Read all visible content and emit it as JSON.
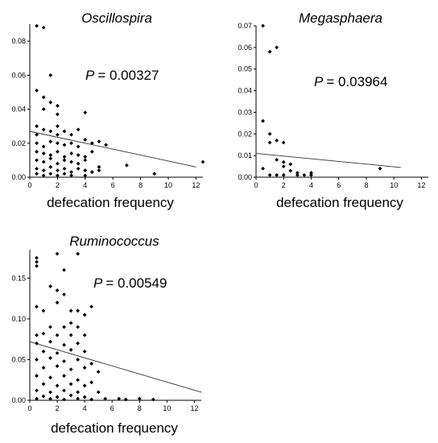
{
  "chart_data": [
    {
      "type": "scatter",
      "title": "Oscillospira",
      "xlabel": "defecation frequency",
      "ylabel": "",
      "annotation": {
        "label": "P",
        "value": "= 0.00327"
      },
      "xlim": [
        0,
        12.5
      ],
      "ylim": [
        0,
        0.09
      ],
      "xticks": [
        "0",
        "2",
        "4",
        "6",
        "8",
        "10",
        "12"
      ],
      "xtick_values": [
        0,
        2,
        4,
        6,
        8,
        10,
        12
      ],
      "yticks": [
        "0.00",
        "0.02",
        "0.04",
        "0.06",
        "0.08"
      ],
      "ytick_values": [
        0,
        0.02,
        0.04,
        0.06,
        0.08
      ],
      "trendline": {
        "x": [
          0,
          12
        ],
        "y": [
          0.027,
          0.006
        ]
      },
      "points": [
        [
          0.5,
          0.089
        ],
        [
          1.0,
          0.088
        ],
        [
          0.5,
          0.051
        ],
        [
          1.0,
          0.047
        ],
        [
          1.5,
          0.06
        ],
        [
          1.5,
          0.044
        ],
        [
          2.0,
          0.042
        ],
        [
          1.0,
          0.04
        ],
        [
          2.0,
          0.037
        ],
        [
          4.0,
          0.038
        ],
        [
          0.5,
          0.03
        ],
        [
          1.0,
          0.028
        ],
        [
          0.5,
          0.025
        ],
        [
          1.5,
          0.027
        ],
        [
          2.0,
          0.03
        ],
        [
          2.0,
          0.025
        ],
        [
          2.5,
          0.027
        ],
        [
          3.0,
          0.025
        ],
        [
          3.5,
          0.028
        ],
        [
          0.5,
          0.02
        ],
        [
          1.0,
          0.018
        ],
        [
          1.5,
          0.021
        ],
        [
          2.0,
          0.02
        ],
        [
          2.5,
          0.019
        ],
        [
          3.0,
          0.02
        ],
        [
          3.5,
          0.018
        ],
        [
          4.0,
          0.022
        ],
        [
          4.5,
          0.02
        ],
        [
          5.0,
          0.021
        ],
        [
          5.5,
          0.019
        ],
        [
          0.5,
          0.015
        ],
        [
          1.0,
          0.014
        ],
        [
          1.5,
          0.013
        ],
        [
          2.0,
          0.015
        ],
        [
          2.5,
          0.012
        ],
        [
          3.0,
          0.014
        ],
        [
          3.5,
          0.013
        ],
        [
          4.0,
          0.012
        ],
        [
          4.5,
          0.015
        ],
        [
          0.5,
          0.01
        ],
        [
          1.0,
          0.009
        ],
        [
          1.5,
          0.011
        ],
        [
          2.0,
          0.008
        ],
        [
          2.5,
          0.01
        ],
        [
          3.0,
          0.009
        ],
        [
          3.5,
          0.008
        ],
        [
          4.0,
          0.01
        ],
        [
          5.0,
          0.006
        ],
        [
          7.0,
          0.007
        ],
        [
          0.5,
          0.005
        ],
        [
          1.0,
          0.004
        ],
        [
          1.5,
          0.006
        ],
        [
          2.0,
          0.004
        ],
        [
          2.5,
          0.005
        ],
        [
          3.0,
          0.003
        ],
        [
          3.5,
          0.005
        ],
        [
          4.0,
          0.004
        ],
        [
          4.5,
          0.003
        ],
        [
          5.0,
          0.004
        ],
        [
          0.5,
          0.002
        ],
        [
          1.0,
          0.001
        ],
        [
          1.5,
          0.002
        ],
        [
          2.0,
          0.001
        ],
        [
          2.5,
          0.002
        ],
        [
          3.0,
          0.001
        ],
        [
          4.0,
          0.001
        ],
        [
          9.0,
          0.002
        ],
        [
          12.5,
          0.009
        ]
      ]
    },
    {
      "type": "scatter",
      "title": "Megasphaera",
      "xlabel": "defecation frequency",
      "ylabel": "",
      "annotation": {
        "label": "P",
        "value": "= 0.03964"
      },
      "xlim": [
        0,
        12.5
      ],
      "ylim": [
        0,
        0.07
      ],
      "xticks": [
        "0",
        "2",
        "4",
        "6",
        "8",
        "10",
        "12"
      ],
      "xtick_values": [
        0,
        2,
        4,
        6,
        8,
        10,
        12
      ],
      "yticks": [
        "0.00",
        "0.01",
        "0.02",
        "0.03",
        "0.04",
        "0.05",
        "0.06",
        "0.07"
      ],
      "ytick_values": [
        0,
        0.01,
        0.02,
        0.03,
        0.04,
        0.05,
        0.06,
        0.07
      ],
      "trendline": {
        "x": [
          0,
          10.5
        ],
        "y": [
          0.011,
          0.0045
        ]
      },
      "points": [
        [
          0.5,
          0.07
        ],
        [
          1.0,
          0.058
        ],
        [
          1.5,
          0.06
        ],
        [
          0.5,
          0.026
        ],
        [
          1.0,
          0.02
        ],
        [
          1.0,
          0.016
        ],
        [
          1.5,
          0.017
        ],
        [
          2.0,
          0.016
        ],
        [
          1.5,
          0.008
        ],
        [
          2.0,
          0.007
        ],
        [
          2.0,
          0.005
        ],
        [
          2.5,
          0.006
        ],
        [
          2.5,
          0.003
        ],
        [
          3.0,
          0.002
        ],
        [
          0.5,
          0.004
        ],
        [
          1.0,
          0.001
        ],
        [
          1.5,
          0.001
        ],
        [
          2.0,
          0.001
        ],
        [
          3.0,
          0.001
        ],
        [
          3.5,
          0.001
        ],
        [
          4.0,
          0.002
        ],
        [
          4.0,
          0.001
        ],
        [
          9.0,
          0.004
        ]
      ]
    },
    {
      "type": "scatter",
      "title": "Ruminococcus",
      "xlabel": "defecation frequency",
      "ylabel": "",
      "annotation": {
        "label": "P",
        "value": "= 0.00549"
      },
      "xlim": [
        0,
        12.5
      ],
      "ylim": [
        0,
        0.185
      ],
      "xticks": [
        "0",
        "2",
        "4",
        "6",
        "8",
        "10",
        "12"
      ],
      "xtick_values": [
        0,
        2,
        4,
        6,
        8,
        10,
        12
      ],
      "yticks": [
        "0.00",
        "0.05",
        "0.10",
        "0.15"
      ],
      "ytick_values": [
        0,
        0.05,
        0.1,
        0.15
      ],
      "trendline": {
        "x": [
          0,
          12.5
        ],
        "y": [
          0.072,
          0.01
        ]
      },
      "points": [
        [
          0.5,
          0.175
        ],
        [
          0.5,
          0.17
        ],
        [
          0.5,
          0.165
        ],
        [
          2.0,
          0.18
        ],
        [
          3.5,
          0.18
        ],
        [
          2.5,
          0.16
        ],
        [
          1.5,
          0.14
        ],
        [
          2.0,
          0.135
        ],
        [
          2.5,
          0.13
        ],
        [
          2.0,
          0.12
        ],
        [
          1.0,
          0.11
        ],
        [
          0.5,
          0.115
        ],
        [
          3.0,
          0.11
        ],
        [
          3.5,
          0.11
        ],
        [
          4.5,
          0.115
        ],
        [
          4.0,
          0.105
        ],
        [
          1.5,
          0.09
        ],
        [
          2.5,
          0.09
        ],
        [
          3.0,
          0.095
        ],
        [
          3.5,
          0.09
        ],
        [
          0.5,
          0.08
        ],
        [
          1.0,
          0.082
        ],
        [
          2.0,
          0.08
        ],
        [
          3.0,
          0.08
        ],
        [
          4.0,
          0.08
        ],
        [
          0.5,
          0.07
        ],
        [
          1.5,
          0.072
        ],
        [
          2.5,
          0.068
        ],
        [
          3.5,
          0.07
        ],
        [
          1.0,
          0.06
        ],
        [
          2.0,
          0.058
        ],
        [
          3.0,
          0.062
        ],
        [
          4.0,
          0.06
        ],
        [
          0.5,
          0.05
        ],
        [
          1.5,
          0.052
        ],
        [
          2.5,
          0.048
        ],
        [
          3.5,
          0.05
        ],
        [
          4.5,
          0.045
        ],
        [
          1.0,
          0.04
        ],
        [
          2.0,
          0.042
        ],
        [
          3.0,
          0.038
        ],
        [
          4.0,
          0.04
        ],
        [
          5.0,
          0.035
        ],
        [
          0.5,
          0.03
        ],
        [
          1.5,
          0.028
        ],
        [
          2.5,
          0.03
        ],
        [
          3.5,
          0.025
        ],
        [
          4.5,
          0.022
        ],
        [
          1.0,
          0.02
        ],
        [
          2.0,
          0.018
        ],
        [
          3.0,
          0.02
        ],
        [
          4.0,
          0.018
        ],
        [
          0.5,
          0.012
        ],
        [
          1.5,
          0.01
        ],
        [
          2.5,
          0.012
        ],
        [
          3.5,
          0.01
        ],
        [
          5.0,
          0.01
        ],
        [
          1.0,
          0.005
        ],
        [
          2.0,
          0.004
        ],
        [
          3.0,
          0.006
        ],
        [
          4.0,
          0.004
        ],
        [
          0.5,
          0.002
        ],
        [
          1.5,
          0.002
        ],
        [
          2.5,
          0.001
        ],
        [
          3.5,
          0.002
        ],
        [
          4.5,
          0.001
        ],
        [
          5.5,
          0.002
        ],
        [
          6.5,
          0.002
        ],
        [
          7.0,
          0.001
        ],
        [
          8.0,
          0.002
        ],
        [
          9.0,
          0.001
        ]
      ]
    }
  ]
}
